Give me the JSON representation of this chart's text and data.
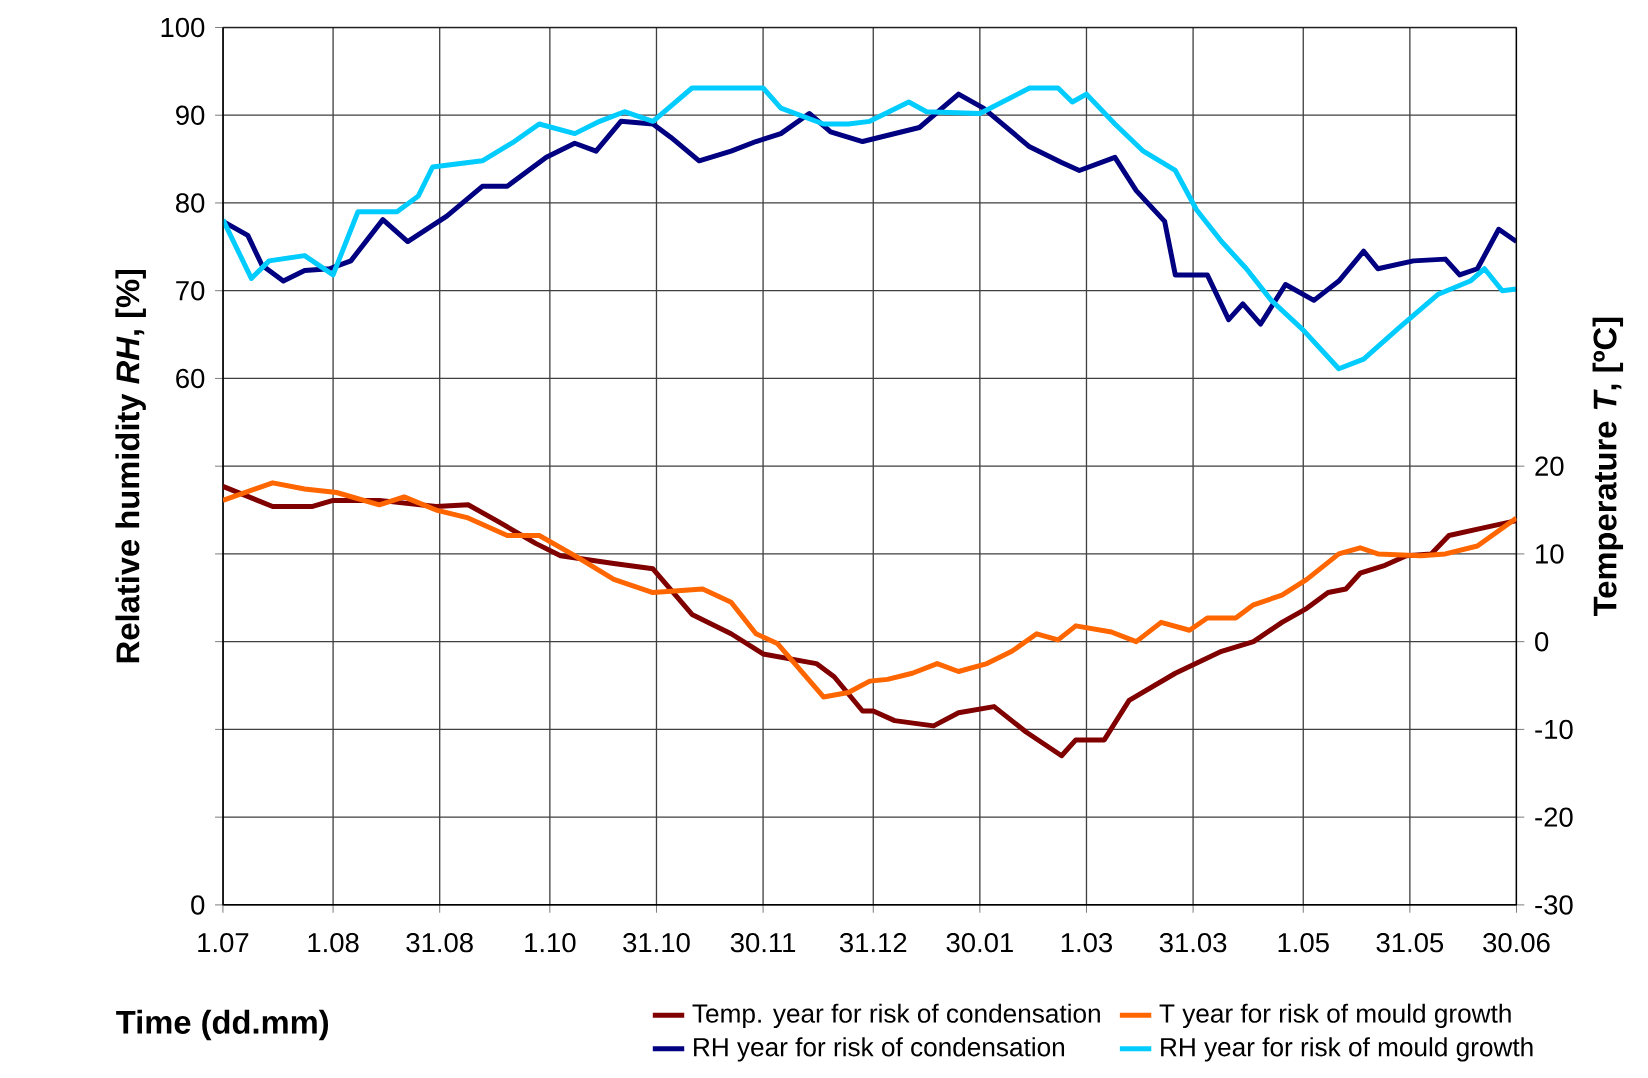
{
  "chart_data": {
    "type": "line",
    "xlabel": "Time (dd.mm)",
    "ylabel": "Relative humidity *RH*, [%]",
    "y2label": "Temperature *T*, [ºC]",
    "xlim": [
      "2001-07-01",
      "2002-06-30"
    ],
    "xticks": [
      {
        "value": "2001-07-01",
        "label": "1.07"
      },
      {
        "value": "2001-08-01",
        "label": "1.08"
      },
      {
        "value": "2001-08-31",
        "label": "31.08"
      },
      {
        "value": "2001-10-01",
        "label": "1.10"
      },
      {
        "value": "2001-10-31",
        "label": "31.10"
      },
      {
        "value": "2001-11-30",
        "label": "30.11"
      },
      {
        "value": "2001-12-31",
        "label": "31.12"
      },
      {
        "value": "2002-01-30",
        "label": "30.01"
      },
      {
        "value": "2002-03-01",
        "label": "1.03"
      },
      {
        "value": "2002-03-31",
        "label": "31.03"
      },
      {
        "value": "2002-05-01",
        "label": "1.05"
      },
      {
        "value": "2002-05-31",
        "label": "31.05"
      },
      {
        "value": "2002-06-30",
        "label": "30.06"
      }
    ],
    "ylim": [
      0,
      100
    ],
    "yticks": [
      0,
      {
        "value": 10,
        "label": null
      },
      {
        "value": 20,
        "label": null
      },
      {
        "value": 30,
        "label": null
      },
      {
        "value": 40,
        "label": null
      },
      {
        "value": 50,
        "label": null
      },
      60,
      70,
      80,
      90,
      100
    ],
    "y2lim": [
      -30,
      70
    ],
    "y2ticks": [
      -30,
      -20,
      -10,
      0,
      10,
      20
    ],
    "grid": true,
    "legend": "bottom",
    "series": [
      {
        "name": "Temp.  year for risk of condensation",
        "color": "#800000",
        "axis": "y2",
        "x": [
          "2001-07-01",
          "2001-07-15",
          "2001-07-26",
          "2001-08-01",
          "2001-08-14",
          "2001-08-30",
          "2001-09-08",
          "2001-09-16",
          "2001-09-27",
          "2001-10-04",
          "2001-10-19",
          "2001-10-30",
          "2001-11-10",
          "2001-11-21",
          "2001-11-30",
          "2001-12-15",
          "2001-12-20",
          "2001-12-28",
          "2001-12-31",
          "2002-01-06",
          "2002-01-17",
          "2002-01-24",
          "2002-02-03",
          "2002-02-12",
          "2002-02-22",
          "2002-02-26",
          "2002-03-06",
          "2002-03-13",
          "2002-03-26",
          "2002-04-08",
          "2002-04-17",
          "2002-04-25",
          "2002-05-02",
          "2002-05-08",
          "2002-05-13",
          "2002-05-17",
          "2002-05-24",
          "2002-05-30",
          "2002-06-06",
          "2002-06-11",
          "2002-06-21",
          "2002-06-30"
        ],
        "values": [
          17.7,
          15.4,
          15.4,
          16.1,
          16.1,
          15.4,
          15.6,
          13.8,
          11.2,
          9.8,
          8.9,
          8.3,
          3.1,
          0.9,
          -1.4,
          -2.5,
          -4.0,
          -7.9,
          -7.9,
          -9.0,
          -9.6,
          -8.1,
          -7.4,
          -10.3,
          -13.0,
          -11.2,
          -11.2,
          -6.7,
          -3.6,
          -1.1,
          0.0,
          2.2,
          3.8,
          5.6,
          6.0,
          7.8,
          8.7,
          9.8,
          10.0,
          12.1,
          13.0,
          13.8
        ]
      },
      {
        "name": "T year for risk of mould growth",
        "color": "#ff6600",
        "axis": "y2",
        "x": [
          "2001-07-01",
          "2001-07-15",
          "2001-07-24",
          "2001-08-02",
          "2001-08-14",
          "2001-08-21",
          "2001-08-30",
          "2001-09-08",
          "2001-09-19",
          "2001-09-28",
          "2001-10-08",
          "2001-10-19",
          "2001-10-30",
          "2001-11-13",
          "2001-11-21",
          "2001-11-28",
          "2001-12-04",
          "2001-12-17",
          "2001-12-24",
          "2001-12-30",
          "2002-01-04",
          "2002-01-11",
          "2002-01-18",
          "2002-01-24",
          "2002-02-01",
          "2002-02-08",
          "2002-02-15",
          "2002-02-21",
          "2002-02-26",
          "2002-03-08",
          "2002-03-15",
          "2002-03-22",
          "2002-03-30",
          "2002-04-04",
          "2002-04-12",
          "2002-04-17",
          "2002-04-25",
          "2002-05-02",
          "2002-05-11",
          "2002-05-17",
          "2002-05-22",
          "2002-06-03",
          "2002-06-10",
          "2002-06-19",
          "2002-06-30"
        ],
        "values": [
          16.1,
          18.1,
          17.4,
          17.0,
          15.6,
          16.5,
          15.0,
          14.1,
          12.1,
          12.1,
          9.8,
          7.1,
          5.6,
          6.0,
          4.5,
          0.9,
          -0.2,
          -6.3,
          -5.8,
          -4.5,
          -4.3,
          -3.6,
          -2.5,
          -3.4,
          -2.5,
          -1.1,
          0.9,
          0.2,
          1.8,
          1.1,
          0.0,
          2.2,
          1.3,
          2.7,
          2.7,
          4.2,
          5.3,
          7.1,
          10.0,
          10.7,
          10.0,
          9.8,
          10.0,
          10.9,
          14.1
        ]
      },
      {
        "name": "RH year for risk of condensation",
        "color": "#000080",
        "x": [
          "2001-07-01",
          "2001-07-08",
          "2001-07-12",
          "2001-07-18",
          "2001-07-24",
          "2001-07-31",
          "2001-08-06",
          "2001-08-15",
          "2001-08-22",
          "2001-09-02",
          "2001-09-12",
          "2001-09-19",
          "2001-09-30",
          "2001-10-08",
          "2001-10-14",
          "2001-10-21",
          "2001-10-30",
          "2001-11-04",
          "2001-11-12",
          "2001-11-21",
          "2001-11-28",
          "2001-12-05",
          "2001-12-13",
          "2001-12-19",
          "2001-12-28",
          "2002-01-13",
          "2002-01-24",
          "2002-01-31",
          "2002-02-13",
          "2002-02-22",
          "2002-02-27",
          "2002-03-09",
          "2002-03-15",
          "2002-03-23",
          "2002-03-26",
          "2002-04-04",
          "2002-04-10",
          "2002-04-14",
          "2002-04-19",
          "2002-04-26",
          "2002-05-04",
          "2002-05-11",
          "2002-05-18",
          "2002-05-22",
          "2002-06-01",
          "2002-06-10",
          "2002-06-14",
          "2002-06-19",
          "2002-06-25",
          "2002-06-30"
        ],
        "values": [
          77.9,
          76.3,
          72.9,
          71.1,
          72.3,
          72.5,
          73.4,
          78.1,
          75.6,
          78.5,
          81.9,
          81.9,
          85.2,
          86.8,
          85.9,
          89.3,
          89.0,
          87.5,
          84.8,
          85.9,
          87.0,
          87.9,
          90.2,
          88.1,
          87.0,
          88.6,
          92.4,
          90.8,
          86.4,
          84.6,
          83.7,
          85.2,
          81.4,
          77.9,
          71.8,
          71.8,
          66.7,
          68.5,
          66.2,
          70.7,
          68.9,
          71.1,
          74.5,
          72.5,
          73.4,
          73.6,
          71.8,
          72.5,
          77.0,
          75.6
        ]
      },
      {
        "name": "RH year for risk of mould growth",
        "color": "#00ccff",
        "x": [
          "2001-07-01",
          "2001-07-09",
          "2001-07-14",
          "2001-07-24",
          "2001-08-01",
          "2001-08-08",
          "2001-08-19",
          "2001-08-25",
          "2001-08-29",
          "2001-09-12",
          "2001-09-21",
          "2001-09-28",
          "2001-10-08",
          "2001-10-15",
          "2001-10-22",
          "2001-10-30",
          "2001-11-10",
          "2001-11-30",
          "2001-12-05",
          "2001-12-17",
          "2001-12-24",
          "2001-12-30",
          "2002-01-10",
          "2002-01-15",
          "2002-01-30",
          "2002-02-13",
          "2002-02-21",
          "2002-02-25",
          "2002-03-01",
          "2002-03-09",
          "2002-03-17",
          "2002-03-26",
          "2002-04-01",
          "2002-04-08",
          "2002-04-15",
          "2002-04-22",
          "2002-05-01",
          "2002-05-11",
          "2002-05-18",
          "2002-05-28",
          "2002-06-08",
          "2002-06-17",
          "2002-06-21",
          "2002-06-26",
          "2002-06-30"
        ],
        "values": [
          78.1,
          71.4,
          73.4,
          74.0,
          71.8,
          79.0,
          79.0,
          80.8,
          84.1,
          84.8,
          87.0,
          89.0,
          87.9,
          89.3,
          90.4,
          89.3,
          93.1,
          93.1,
          90.8,
          89.0,
          89.0,
          89.3,
          91.5,
          90.4,
          90.2,
          93.1,
          93.1,
          91.5,
          92.4,
          89.0,
          85.9,
          83.7,
          79.2,
          75.6,
          72.5,
          68.9,
          65.5,
          61.1,
          62.2,
          65.8,
          69.6,
          71.1,
          72.5,
          70.0,
          70.2
        ]
      }
    ]
  }
}
